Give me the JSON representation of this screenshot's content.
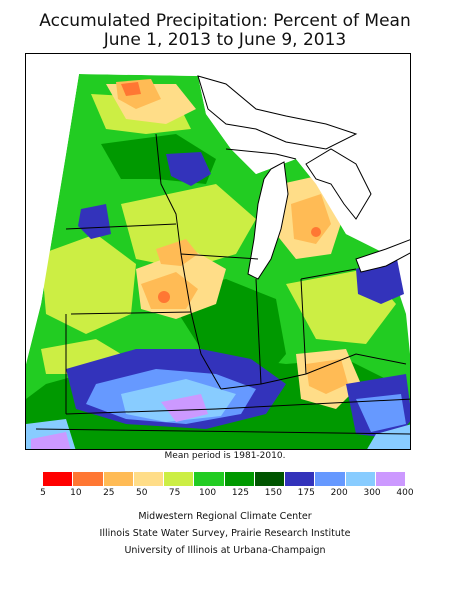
{
  "title_line1": "Accumulated Precipitation: Percent of Mean",
  "title_line2": "June 1, 2013 to June 9, 2013",
  "mean_period_note": "Mean period is 1981-2010.",
  "legend": {
    "breaks": [
      "5",
      "10",
      "25",
      "50",
      "75",
      "100",
      "125",
      "150",
      "175",
      "200",
      "300",
      "400"
    ],
    "colors": [
      "#ff0000",
      "#ff7733",
      "#ffbb55",
      "#ffdd88",
      "#ccee44",
      "#22cc22",
      "#009900",
      "#005500",
      "#3333bb",
      "#6699ff",
      "#88ccff",
      "#cc99ff"
    ]
  },
  "map": {
    "land_background": "#ffffff",
    "lake_color": "#ffffff",
    "border_color": "#000000"
  },
  "credits": {
    "line1": "Midwestern Regional Climate Center",
    "line2": "Illinois State Water Survey, Prairie Research Institute",
    "line3": "University of Illinois at Urbana-Champaign"
  }
}
